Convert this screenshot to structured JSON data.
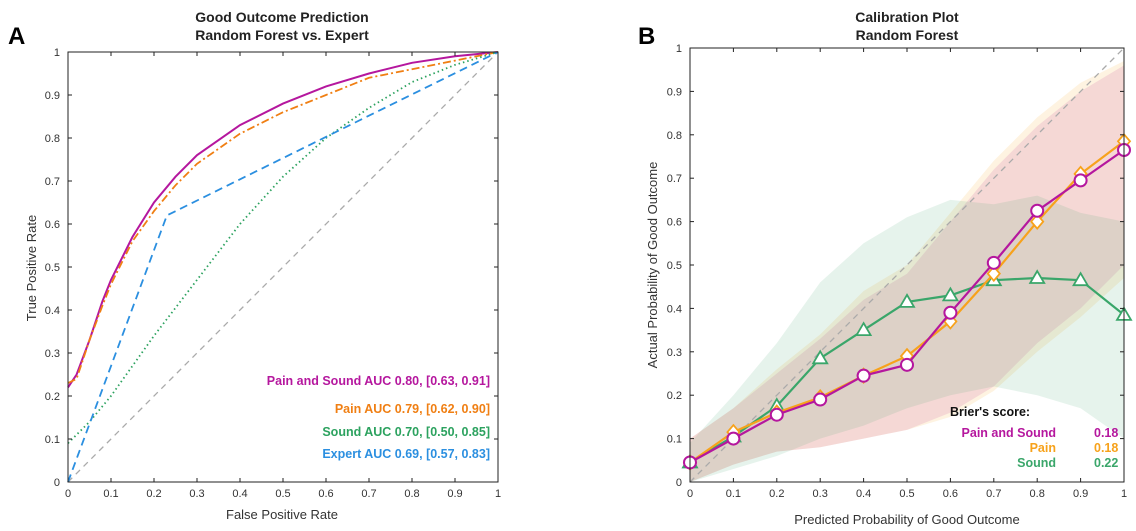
{
  "chart_data": [
    {
      "panel": "A",
      "type": "line",
      "title": "Good Outcome Prediction",
      "subtitle": "Random Forest vs. Expert",
      "xlabel": "False Positive Rate",
      "ylabel": "True Positive Rate",
      "xlim": [
        0,
        1
      ],
      "ylim": [
        0,
        1
      ],
      "xticks": [
        "0",
        "0.1",
        "0.2",
        "0.3",
        "0.4",
        "0.5",
        "0.6",
        "0.7",
        "0.8",
        "0.9",
        "1"
      ],
      "yticks": [
        "0",
        "0.1",
        "0.2",
        "0.3",
        "0.4",
        "0.5",
        "0.6",
        "0.7",
        "0.8",
        "0.9",
        "1"
      ],
      "grid": false,
      "legend_position": "bottom-right",
      "reference": {
        "style": "dashed",
        "color": "#aaaaaa",
        "x": [
          0,
          1
        ],
        "y": [
          0,
          1
        ]
      },
      "series": [
        {
          "name": "Pain and Sound",
          "legend": "Pain and Sound AUC 0.80, [0.63, 0.91]",
          "color": "#b5179e",
          "style": "solid",
          "x": [
            0,
            0.02,
            0.05,
            0.08,
            0.1,
            0.15,
            0.2,
            0.25,
            0.3,
            0.4,
            0.5,
            0.6,
            0.7,
            0.8,
            0.9,
            1
          ],
          "y": [
            0.22,
            0.25,
            0.33,
            0.42,
            0.47,
            0.57,
            0.65,
            0.71,
            0.76,
            0.83,
            0.88,
            0.92,
            0.95,
            0.975,
            0.99,
            1
          ]
        },
        {
          "name": "Pain",
          "legend": "Pain AUC 0.79, [0.62, 0.90]",
          "color": "#f07f13",
          "style": "dashdot",
          "x": [
            0,
            0.02,
            0.05,
            0.08,
            0.1,
            0.15,
            0.2,
            0.25,
            0.3,
            0.4,
            0.5,
            0.6,
            0.7,
            0.8,
            0.9,
            1
          ],
          "y": [
            0.23,
            0.24,
            0.33,
            0.41,
            0.46,
            0.56,
            0.63,
            0.69,
            0.74,
            0.81,
            0.86,
            0.9,
            0.94,
            0.96,
            0.98,
            1
          ]
        },
        {
          "name": "Sound",
          "legend": "Sound AUC 0.70, [0.50, 0.85]",
          "color": "#2ca25f",
          "style": "dotted",
          "x": [
            0,
            0.05,
            0.1,
            0.2,
            0.3,
            0.4,
            0.5,
            0.6,
            0.7,
            0.8,
            0.9,
            1
          ],
          "y": [
            0.09,
            0.14,
            0.2,
            0.34,
            0.47,
            0.6,
            0.71,
            0.8,
            0.87,
            0.93,
            0.97,
            1
          ]
        },
        {
          "name": "Expert",
          "legend": "Expert AUC 0.69, [0.57, 0.83]",
          "color": "#2b8fe0",
          "style": "dashed",
          "x": [
            0,
            0.23,
            1
          ],
          "y": [
            0,
            0.62,
            1
          ]
        }
      ]
    },
    {
      "panel": "B",
      "type": "line",
      "title": "Calibration Plot",
      "subtitle": "Random Forest",
      "xlabel": "Predicted Probability of Good Outcome",
      "ylabel": "Actual Probability of Good Outcome",
      "xlim": [
        0,
        1
      ],
      "ylim": [
        0,
        1
      ],
      "xticks": [
        "0",
        "0.1",
        "0.2",
        "0.3",
        "0.4",
        "0.5",
        "0.6",
        "0.7",
        "0.8",
        "0.9",
        "1"
      ],
      "yticks": [
        "0",
        "0.1",
        "0.2",
        "0.3",
        "0.4",
        "0.5",
        "0.6",
        "0.7",
        "0.8",
        "0.9",
        "1"
      ],
      "grid": false,
      "legend_position": "bottom-right",
      "legend_title": "Brier's score:",
      "reference": {
        "style": "dashed",
        "color": "#aaaaaa",
        "x": [
          0,
          1
        ],
        "y": [
          0,
          1
        ]
      },
      "x": [
        0,
        0.1,
        0.2,
        0.3,
        0.4,
        0.5,
        0.6,
        0.7,
        0.8,
        0.9,
        1
      ],
      "series": [
        {
          "name": "Pain and Sound",
          "brier": "0.18",
          "color": "#b5179e",
          "marker": "circle",
          "y": [
            0.045,
            0.1,
            0.155,
            0.19,
            0.245,
            0.27,
            0.39,
            0.505,
            0.625,
            0.695,
            0.765
          ],
          "band_lower": [
            0.0,
            0.04,
            0.07,
            0.08,
            0.1,
            0.12,
            0.16,
            0.22,
            0.32,
            0.4,
            0.5
          ],
          "band_upper": [
            0.1,
            0.17,
            0.25,
            0.33,
            0.42,
            0.48,
            0.6,
            0.72,
            0.82,
            0.9,
            0.96
          ]
        },
        {
          "name": "Pain",
          "brier": "0.18",
          "color": "#f7a21b",
          "marker": "diamond",
          "y": [
            0.045,
            0.115,
            0.16,
            0.195,
            0.245,
            0.29,
            0.37,
            0.48,
            0.6,
            0.71,
            0.785
          ],
          "band_lower": [
            0.0,
            0.04,
            0.07,
            0.08,
            0.1,
            0.12,
            0.15,
            0.21,
            0.3,
            0.38,
            0.47
          ],
          "band_upper": [
            0.1,
            0.17,
            0.26,
            0.34,
            0.44,
            0.5,
            0.62,
            0.74,
            0.84,
            0.92,
            0.97
          ]
        },
        {
          "name": "Sound",
          "brier": "0.22",
          "color": "#3aa66a",
          "marker": "triangle",
          "y": [
            0.045,
            0.105,
            0.175,
            0.285,
            0.35,
            0.415,
            0.43,
            0.465,
            0.47,
            0.465,
            0.385
          ],
          "band_lower": [
            0.0,
            0.03,
            0.06,
            0.1,
            0.13,
            0.17,
            0.2,
            0.22,
            0.2,
            0.17,
            0.1
          ],
          "band_upper": [
            0.09,
            0.2,
            0.32,
            0.46,
            0.55,
            0.61,
            0.65,
            0.64,
            0.66,
            0.62,
            0.6
          ]
        }
      ]
    }
  ]
}
